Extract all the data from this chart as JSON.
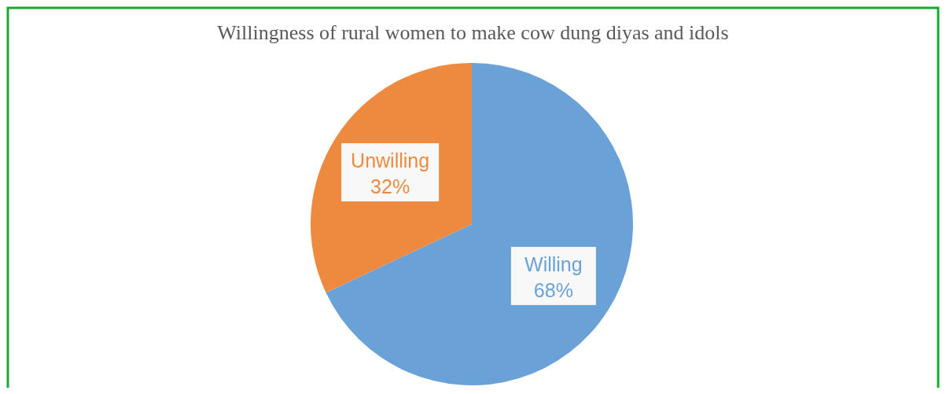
{
  "chart_data": {
    "type": "pie",
    "title": "Willingness of rural women to make cow dung diyas and idols",
    "categories": [
      "Willing",
      "Unwilling"
    ],
    "values": [
      68,
      32
    ],
    "value_labels": [
      "68%",
      "32%"
    ],
    "colors": [
      "#6aa2d8",
      "#ed8a3f"
    ]
  }
}
